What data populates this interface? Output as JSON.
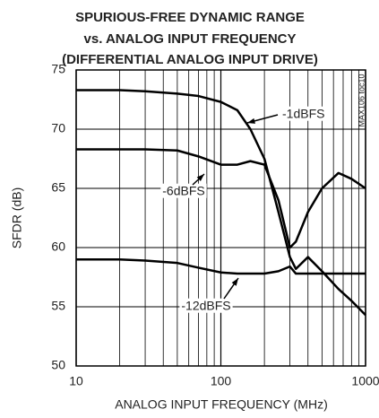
{
  "chart_data": {
    "type": "line",
    "title_lines": [
      "SPURIOUS-FREE DYNAMIC RANGE",
      "vs. ANALOG INPUT FREQUENCY",
      "(DIFFERENTIAL ANALOG INPUT DRIVE)"
    ],
    "side_label": "MAX106 toc10",
    "x_label": "ANALOG INPUT FREQUENCY (MHz)",
    "y_label": "SFDR (dB)",
    "x": [
      10,
      20,
      30,
      50,
      70,
      100,
      130,
      160,
      200,
      250,
      300,
      330,
      400,
      500,
      650,
      800,
      1000
    ],
    "series": [
      {
        "name": "-1dBFS",
        "color": "#000000",
        "values": [
          73.3,
          73.3,
          73.2,
          73.0,
          72.8,
          72.3,
          71.6,
          70.0,
          67.5,
          63,
          59.2,
          58.2,
          59.2,
          58,
          56.5,
          55.5,
          54.3
        ]
      },
      {
        "name": "-6dBFS",
        "color": "#000000",
        "values": [
          68.3,
          68.3,
          68.3,
          68.2,
          67.7,
          67.0,
          67.0,
          67.3,
          67.0,
          64,
          60,
          60.5,
          63,
          65,
          66.3,
          65.8,
          65.0
        ]
      },
      {
        "name": "-12dBFS",
        "color": "#000000",
        "values": [
          59.0,
          59.0,
          58.9,
          58.7,
          58.3,
          57.9,
          57.8,
          57.8,
          57.8,
          58.0,
          58.4,
          57.8,
          57.8,
          57.8,
          57.8,
          57.8,
          57.8
        ]
      }
    ],
    "xlim": [
      10,
      1000
    ],
    "xticks": [
      10,
      100,
      1000
    ],
    "log_x": true,
    "ylim": [
      50,
      75
    ],
    "yticks": [
      50,
      55,
      60,
      65,
      70,
      75
    ],
    "grid": true
  }
}
